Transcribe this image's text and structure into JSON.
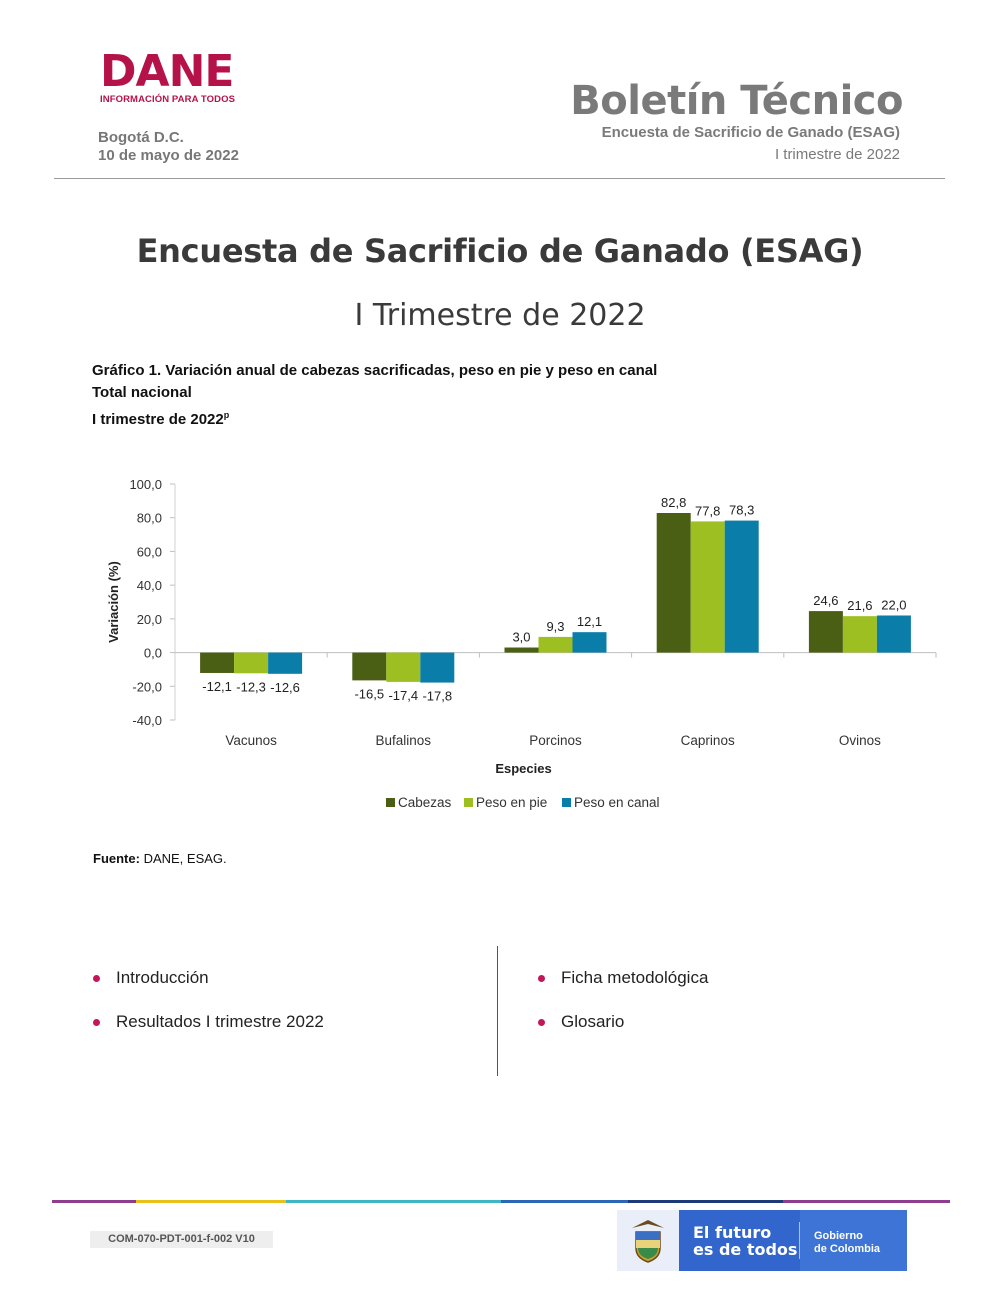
{
  "header": {
    "logo_word": "DANE",
    "logo_tagline": "INFORMACIÓN PARA TODOS",
    "city": "Bogotá D.C.",
    "date": "10 de mayo de 2022",
    "bulletin_title": "Boletín Técnico",
    "bulletin_subtitle": "Encuesta de Sacrificio de Ganado (ESAG)",
    "bulletin_period": "I trimestre de 2022"
  },
  "main": {
    "title": "Encuesta de Sacrificio de Ganado (ESAG)",
    "subtitle": "I Trimestre de 2022"
  },
  "figure": {
    "caption_line1": "Gráfico 1. Variación anual de cabezas sacrificadas, peso en pie y peso en canal",
    "caption_line2": "Total nacional",
    "caption_line3": "I trimestre de 2022",
    "caption_sup": "p",
    "source_label": "Fuente:",
    "source_text": " DANE, ESAG."
  },
  "chart_data": {
    "type": "bar",
    "title": "",
    "xlabel": "Especies",
    "ylabel": "Variación (%)",
    "ylim": [
      -40,
      100
    ],
    "yticks": [
      "100,0",
      "80,0",
      "60,0",
      "40,0",
      "20,0",
      "0,0",
      "-20,0",
      "-40,0"
    ],
    "categories": [
      "Vacunos",
      "Bufalinos",
      "Porcinos",
      "Caprinos",
      "Ovinos"
    ],
    "series": [
      {
        "name": "Cabezas",
        "color": "#4a5e14",
        "values": [
          -12.1,
          -16.5,
          3.0,
          82.8,
          24.6
        ],
        "labels": [
          "-12,1",
          "-16,5",
          "3,0",
          "82,8",
          "24,6"
        ]
      },
      {
        "name": "Peso en pie",
        "color": "#9dbf22",
        "values": [
          -12.3,
          -17.4,
          9.3,
          77.8,
          21.6
        ],
        "labels": [
          "-12,3",
          "-17,4",
          "9,3",
          "77,8",
          "21,6"
        ]
      },
      {
        "name": "Peso en canal",
        "color": "#0a7ea8",
        "values": [
          -12.6,
          -17.8,
          12.1,
          78.3,
          22.0
        ],
        "labels": [
          "-12,6",
          "-17,8",
          "12,1",
          "78,3",
          "22,0"
        ]
      }
    ],
    "legend": "bottom",
    "grid": false
  },
  "toc": {
    "left": [
      "Introducción",
      "Resultados I trimestre 2022"
    ],
    "right": [
      "Ficha metodológica",
      "Glosario"
    ]
  },
  "footer": {
    "doc_code": "COM-070-PDT-001-f-002 V10",
    "gov_slogan_line1": "El futuro",
    "gov_slogan_line2": "es de todos",
    "gov_name_line1": "Gobierno",
    "gov_name_line2": "de Colombia",
    "bar_colors": [
      "#8e3d8f",
      "#e8c21a",
      "#3fb6c6",
      "#2b67b6",
      "#1d3b78",
      "#8e3d8f"
    ]
  }
}
